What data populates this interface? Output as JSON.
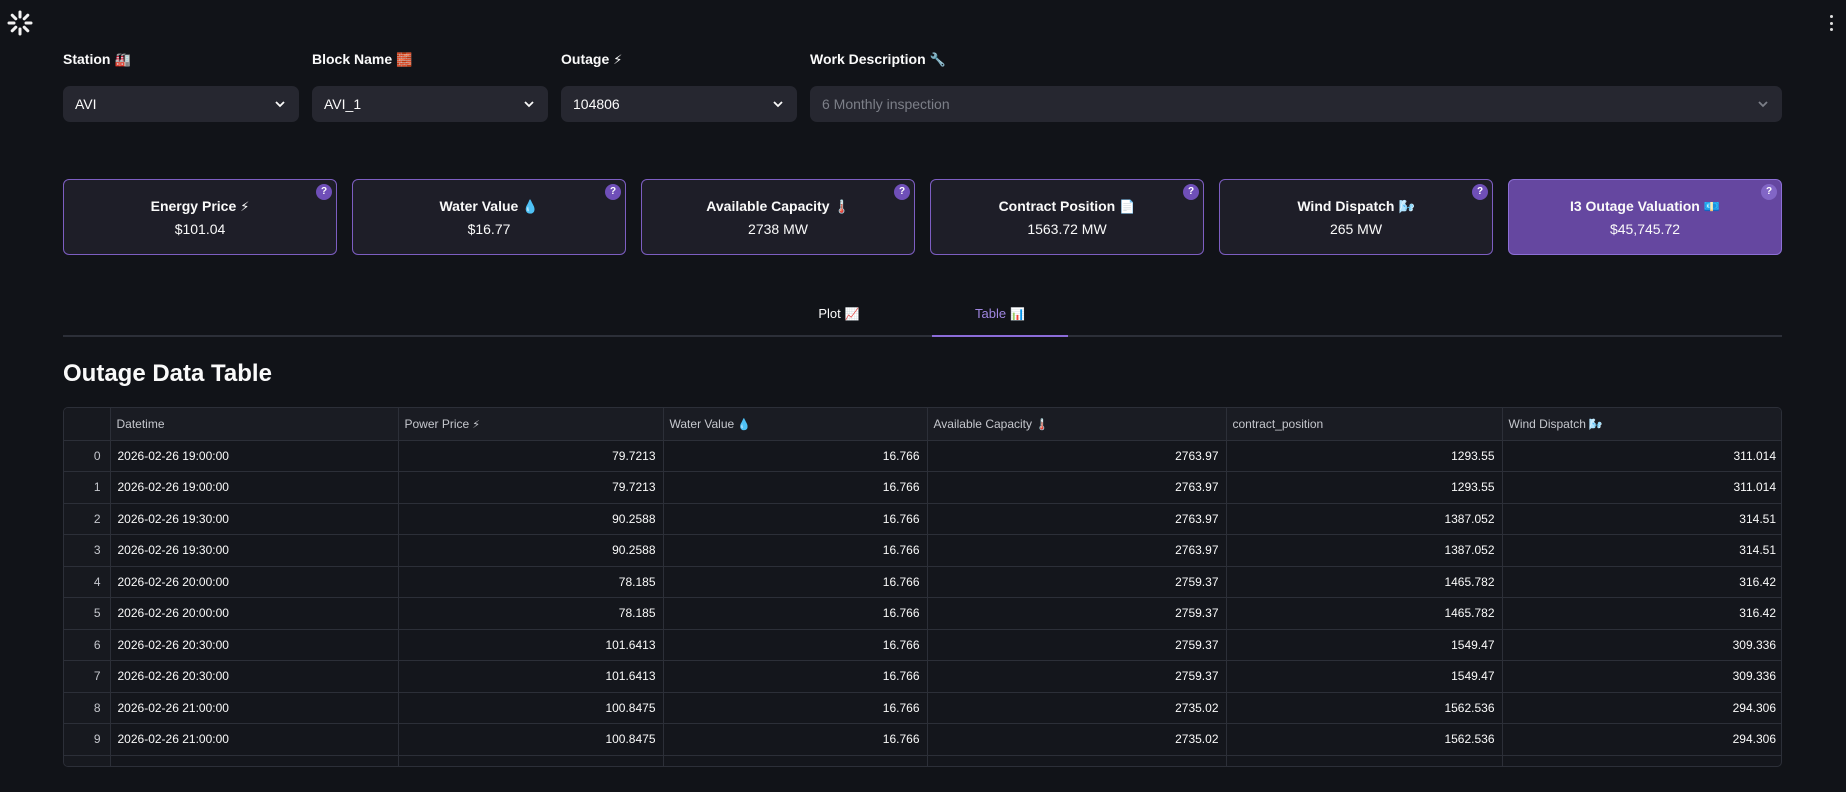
{
  "app": {
    "logo_icon": "streamlit-spinner-icon",
    "menu_icon": "kebab-menu-icon"
  },
  "filters": {
    "station": {
      "label": "Station",
      "emoji": "🏭",
      "value": "AVI"
    },
    "block_name": {
      "label": "Block Name",
      "emoji": "🧱",
      "value": "AVI_1"
    },
    "outage": {
      "label": "Outage",
      "emoji": "⚡",
      "value": "104806"
    },
    "work_description": {
      "label": "Work Description",
      "emoji": "🔧",
      "value": "6 Monthly inspection"
    }
  },
  "metrics": [
    {
      "title": "Energy Price",
      "emoji": "⚡",
      "value": "$101.04"
    },
    {
      "title": "Water Value",
      "emoji": "💧",
      "value": "$16.77"
    },
    {
      "title": "Available Capacity",
      "emoji": "🌡️",
      "value": "2738 MW"
    },
    {
      "title": "Contract Position",
      "emoji": "📄",
      "value": "1563.72 MW"
    },
    {
      "title": "Wind Dispatch",
      "emoji": "🌬️",
      "value": "265 MW"
    },
    {
      "title": "I3 Outage Valuation",
      "emoji": "💶",
      "value": "$45,745.72"
    }
  ],
  "help_glyph": "?",
  "tabs": [
    {
      "label": "Plot",
      "emoji": "📈"
    },
    {
      "label": "Table",
      "emoji": "📊"
    }
  ],
  "section_title": "Outage Data Table",
  "table": {
    "columns": [
      {
        "label": "Datetime",
        "emoji": ""
      },
      {
        "label": "Power Price",
        "emoji": "⚡"
      },
      {
        "label": "Water Value",
        "emoji": "💧"
      },
      {
        "label": "Available Capacity",
        "emoji": "🌡️"
      },
      {
        "label": "contract_position",
        "emoji": ""
      },
      {
        "label": "Wind Dispatch",
        "emoji": "🌬️"
      }
    ],
    "rows": [
      {
        "index": "0",
        "datetime": "2026-02-26 19:00:00",
        "power_price": "79.7213",
        "water_value": "16.766",
        "available_capacity": "2763.97",
        "contract_position": "1293.55",
        "wind_dispatch": "311.014"
      },
      {
        "index": "1",
        "datetime": "2026-02-26 19:00:00",
        "power_price": "79.7213",
        "water_value": "16.766",
        "available_capacity": "2763.97",
        "contract_position": "1293.55",
        "wind_dispatch": "311.014"
      },
      {
        "index": "2",
        "datetime": "2026-02-26 19:30:00",
        "power_price": "90.2588",
        "water_value": "16.766",
        "available_capacity": "2763.97",
        "contract_position": "1387.052",
        "wind_dispatch": "314.51"
      },
      {
        "index": "3",
        "datetime": "2026-02-26 19:30:00",
        "power_price": "90.2588",
        "water_value": "16.766",
        "available_capacity": "2763.97",
        "contract_position": "1387.052",
        "wind_dispatch": "314.51"
      },
      {
        "index": "4",
        "datetime": "2026-02-26 20:00:00",
        "power_price": "78.185",
        "water_value": "16.766",
        "available_capacity": "2759.37",
        "contract_position": "1465.782",
        "wind_dispatch": "316.42"
      },
      {
        "index": "5",
        "datetime": "2026-02-26 20:00:00",
        "power_price": "78.185",
        "water_value": "16.766",
        "available_capacity": "2759.37",
        "contract_position": "1465.782",
        "wind_dispatch": "316.42"
      },
      {
        "index": "6",
        "datetime": "2026-02-26 20:30:00",
        "power_price": "101.6413",
        "water_value": "16.766",
        "available_capacity": "2759.37",
        "contract_position": "1549.47",
        "wind_dispatch": "309.336"
      },
      {
        "index": "7",
        "datetime": "2026-02-26 20:30:00",
        "power_price": "101.6413",
        "water_value": "16.766",
        "available_capacity": "2759.37",
        "contract_position": "1549.47",
        "wind_dispatch": "309.336"
      },
      {
        "index": "8",
        "datetime": "2026-02-26 21:00:00",
        "power_price": "100.8475",
        "water_value": "16.766",
        "available_capacity": "2735.02",
        "contract_position": "1562.536",
        "wind_dispatch": "294.306"
      },
      {
        "index": "9",
        "datetime": "2026-02-26 21:00:00",
        "power_price": "100.8475",
        "water_value": "16.766",
        "available_capacity": "2735.02",
        "contract_position": "1562.536",
        "wind_dispatch": "294.306"
      }
    ]
  },
  "colors": {
    "background": "#111318",
    "surface": "#262730",
    "accent": "#7d5ec2",
    "active_card": "#6547a0",
    "active_tab": "#9f86e0"
  }
}
